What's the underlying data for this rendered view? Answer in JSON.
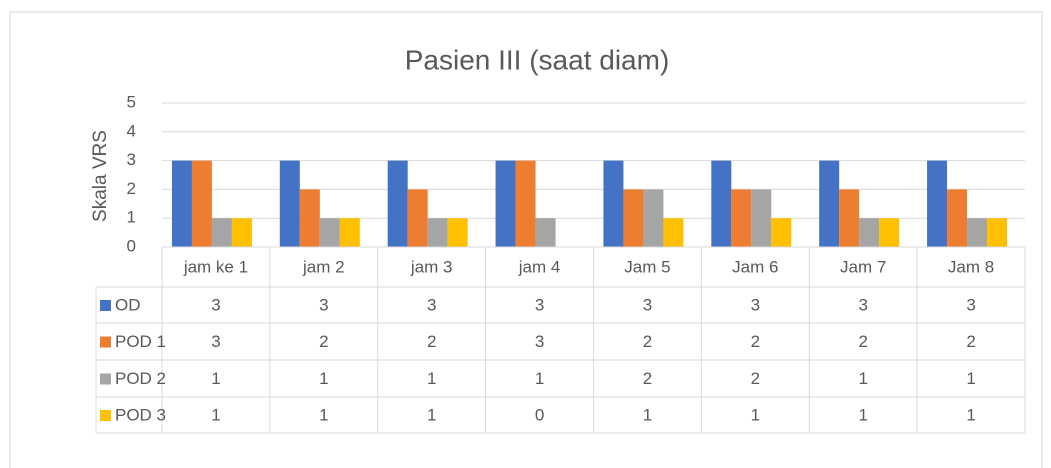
{
  "chart_data": {
    "type": "bar",
    "title": "Pasien III (saat diam)",
    "y_label": "Skala VRS",
    "categories": [
      "jam ke 1",
      "jam 2",
      "jam 3",
      "jam 4",
      "Jam 5",
      "Jam 6",
      "Jam 7",
      "Jam 8"
    ],
    "series": [
      {
        "name": "OD",
        "color": "#4472c4",
        "values": [
          3,
          3,
          3,
          3,
          3,
          3,
          3,
          3
        ]
      },
      {
        "name": "POD 1",
        "color": "#ed7d31",
        "values": [
          3,
          2,
          2,
          3,
          2,
          2,
          2,
          2
        ]
      },
      {
        "name": "POD 2",
        "color": "#a5a5a5",
        "values": [
          1,
          1,
          1,
          1,
          2,
          2,
          1,
          1
        ]
      },
      {
        "name": "POD 3",
        "color": "#ffc000",
        "values": [
          1,
          1,
          1,
          0,
          1,
          1,
          1,
          1
        ]
      }
    ],
    "ylim": [
      0,
      5
    ],
    "yticks": [
      0,
      1,
      2,
      3,
      4,
      5
    ],
    "grid": true,
    "data_table": true
  }
}
